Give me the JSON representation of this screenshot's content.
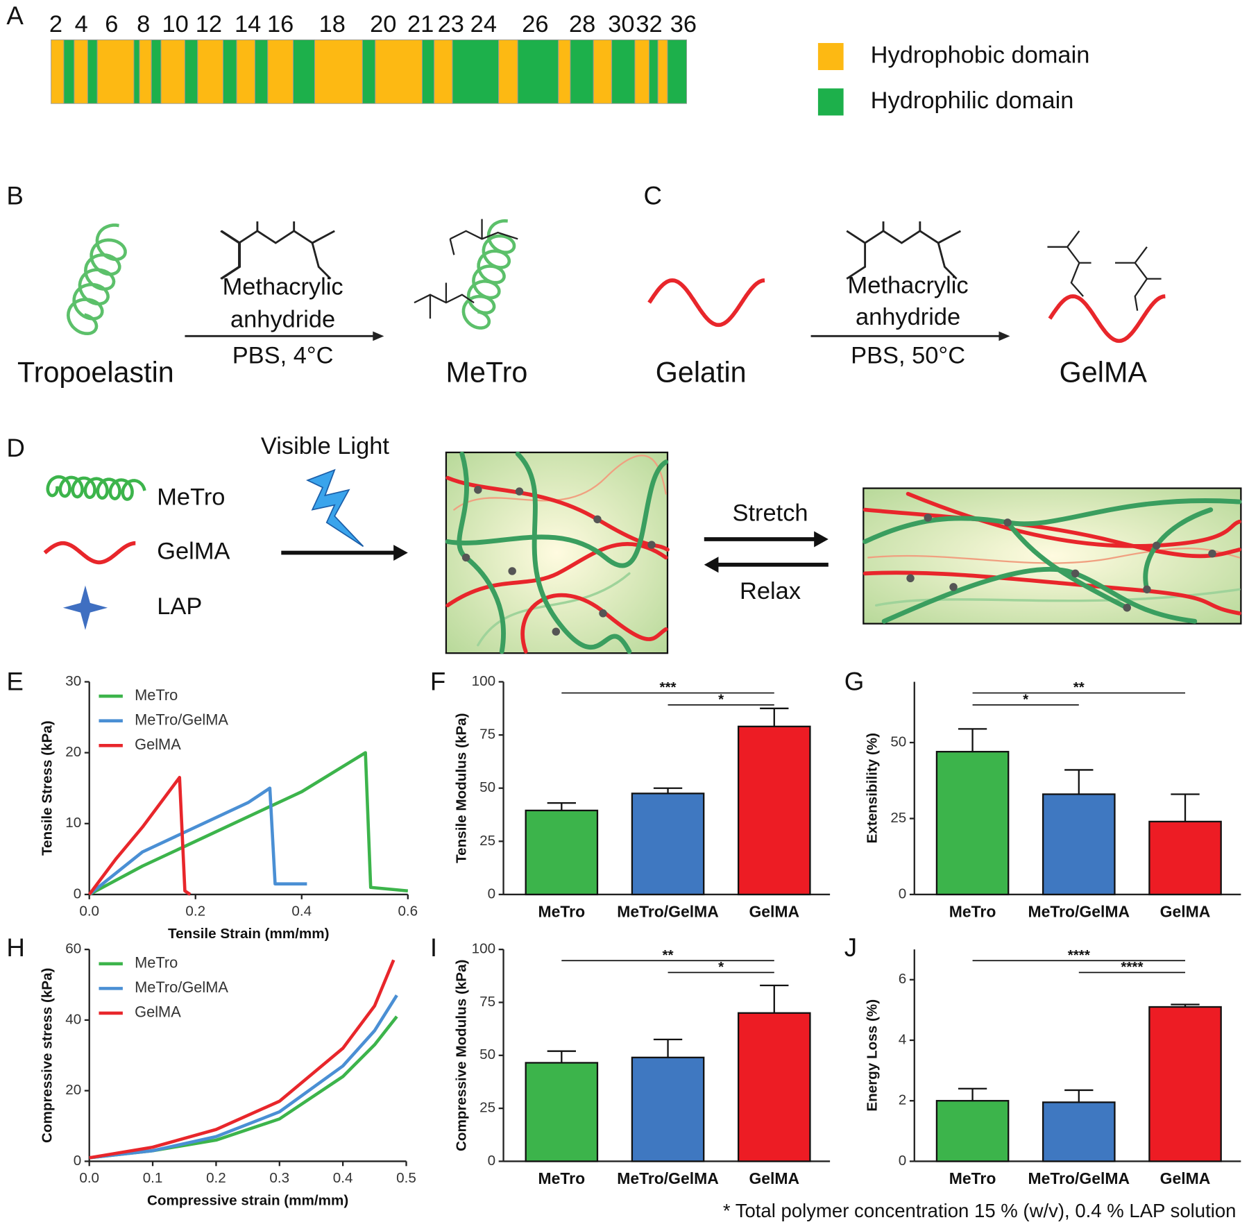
{
  "panel_labels": [
    "A",
    "B",
    "C",
    "D",
    "E",
    "F",
    "G",
    "H",
    "I",
    "J"
  ],
  "domain_map": {
    "positions": [
      2,
      4,
      6,
      8,
      10,
      12,
      14,
      16,
      18,
      20,
      21,
      23,
      24,
      26,
      28,
      30,
      32,
      36
    ],
    "legend": [
      "Hydrophobic domain",
      "Hydrophilic domain"
    ],
    "colors": [
      "#fdb913",
      "#1db04b"
    ]
  },
  "reactions": [
    {
      "reactant": "Tropoelastin",
      "reagent": [
        "Methacrylic",
        "anhydride"
      ],
      "conditions": "PBS, 4°C",
      "product": "MeTro"
    },
    {
      "reactant": "Gelatin",
      "reagent": [
        "Methacrylic",
        "anhydride"
      ],
      "conditions": "PBS, 50°C",
      "product": "GelMA"
    }
  ],
  "crosslinking": {
    "light": "Visible Light",
    "components": [
      "MeTro",
      "GelMA",
      "LAP"
    ],
    "forward": "Stretch",
    "reverse": "Relax"
  },
  "chart_data": [
    {
      "type": "line",
      "xlabel": "Tensile Strain (mm/mm)",
      "ylabel": "Tensile Stress (kPa)",
      "xlim": [
        0,
        0.6
      ],
      "xticks": [
        {
          "value": 0,
          "label": "0.0"
        },
        0.2,
        0.4,
        0.6
      ],
      "ylim": [
        0,
        30
      ],
      "yticks": [
        0,
        10,
        20,
        30
      ],
      "legend": "upper left",
      "series": [
        {
          "name": "MeTro",
          "color": "#3cb44b",
          "x": [
            0,
            0.1,
            0.2,
            0.3,
            0.4,
            0.52,
            0.53,
            0.6
          ],
          "values": [
            0,
            4,
            7.5,
            11,
            14.5,
            20,
            1,
            0.5
          ]
        },
        {
          "name": "MeTro/GelMA",
          "color": "#4a8fd4",
          "x": [
            0,
            0.1,
            0.2,
            0.3,
            0.34,
            0.35,
            0.41
          ],
          "values": [
            0,
            6,
            9.5,
            13,
            15,
            1.5,
            1.5
          ]
        },
        {
          "name": "GelMA",
          "color": "#e8262b",
          "x": [
            0,
            0.05,
            0.1,
            0.17,
            0.18,
            0.19
          ],
          "values": [
            0,
            5,
            9.5,
            16.5,
            0.5,
            0
          ]
        }
      ]
    },
    {
      "type": "bar",
      "ylabel": "Tensile Modulus (kPa)",
      "categories": [
        "MeTro",
        "MeTro/GelMA",
        "GelMA"
      ],
      "values": [
        39.5,
        47.5,
        79
      ],
      "errors": [
        3.5,
        2.5,
        8.5
      ],
      "colors": [
        "#3cb44b",
        "#3f78c1",
        "#ed1c24"
      ],
      "ylim": [
        0,
        100
      ],
      "yticks": [
        0,
        25,
        50,
        75,
        100
      ],
      "significance": [
        {
          "between": [
            "MeTro",
            "GelMA"
          ],
          "label": "***"
        },
        {
          "between": [
            "MeTro/GelMA",
            "GelMA"
          ],
          "label": "*"
        }
      ]
    },
    {
      "type": "bar",
      "ylabel": "Extensibility (%)",
      "categories": [
        "MeTro",
        "MeTro/GelMA",
        "GelMA"
      ],
      "values": [
        47,
        33,
        24
      ],
      "errors": [
        7.5,
        8,
        9
      ],
      "colors": [
        "#3cb44b",
        "#3f78c1",
        "#ed1c24"
      ],
      "ylim": [
        0,
        70
      ],
      "yticks": [
        0,
        25,
        50
      ],
      "significance": [
        {
          "between": [
            "MeTro",
            "GelMA"
          ],
          "label": "**"
        },
        {
          "between": [
            "MeTro",
            "MeTro/GelMA"
          ],
          "label": "*"
        }
      ]
    },
    {
      "type": "line",
      "xlabel": "Compressive strain (mm/mm)",
      "ylabel": "Compressive stress (kPa)",
      "xlim": [
        0,
        0.5
      ],
      "xticks": [
        {
          "value": 0,
          "label": "0.0"
        },
        0.1,
        0.2,
        0.3,
        0.4,
        0.5
      ],
      "ylim": [
        0,
        60
      ],
      "yticks": [
        0,
        20,
        40,
        60
      ],
      "legend": "upper left",
      "series": [
        {
          "name": "MeTro",
          "color": "#3cb44b",
          "x": [
            0,
            0.1,
            0.2,
            0.3,
            0.4,
            0.45,
            0.485
          ],
          "values": [
            1,
            3,
            6,
            12,
            24,
            33,
            41
          ]
        },
        {
          "name": "MeTro/GelMA",
          "color": "#4a8fd4",
          "x": [
            0,
            0.1,
            0.2,
            0.3,
            0.4,
            0.45,
            0.485
          ],
          "values": [
            1,
            3,
            7,
            14,
            27,
            37,
            47
          ]
        },
        {
          "name": "GelMA",
          "color": "#e8262b",
          "x": [
            0,
            0.1,
            0.2,
            0.3,
            0.4,
            0.45,
            0.48
          ],
          "values": [
            1,
            4,
            9,
            17,
            32,
            44,
            57
          ]
        }
      ]
    },
    {
      "type": "bar",
      "ylabel": "Compressive Modulus (kPa)",
      "categories": [
        "MeTro",
        "MeTro/GelMA",
        "GelMA"
      ],
      "values": [
        46.5,
        49,
        70
      ],
      "errors": [
        5.5,
        8.5,
        13
      ],
      "colors": [
        "#3cb44b",
        "#3f78c1",
        "#ed1c24"
      ],
      "ylim": [
        0,
        100
      ],
      "yticks": [
        0,
        25,
        50,
        75,
        100
      ],
      "significance": [
        {
          "between": [
            "MeTro",
            "GelMA"
          ],
          "label": "**"
        },
        {
          "between": [
            "MeTro/GelMA",
            "GelMA"
          ],
          "label": "*"
        }
      ]
    },
    {
      "type": "bar",
      "ylabel": "Energy Loss (%)",
      "categories": [
        "MeTro",
        "MeTro/GelMA",
        "GelMA"
      ],
      "values": [
        2.0,
        1.95,
        5.1
      ],
      "errors": [
        0.4,
        0.4,
        0.08
      ],
      "colors": [
        "#3cb44b",
        "#3f78c1",
        "#ed1c24"
      ],
      "ylim": [
        0,
        7
      ],
      "yticks": [
        0,
        2,
        4,
        6
      ],
      "significance": [
        {
          "between": [
            "MeTro",
            "GelMA"
          ],
          "label": "****"
        },
        {
          "between": [
            "MeTro/GelMA",
            "GelMA"
          ],
          "label": "****"
        }
      ]
    }
  ],
  "footnote": "* Total polymer concentration 15 % (w/v), 0.4 % LAP solution"
}
